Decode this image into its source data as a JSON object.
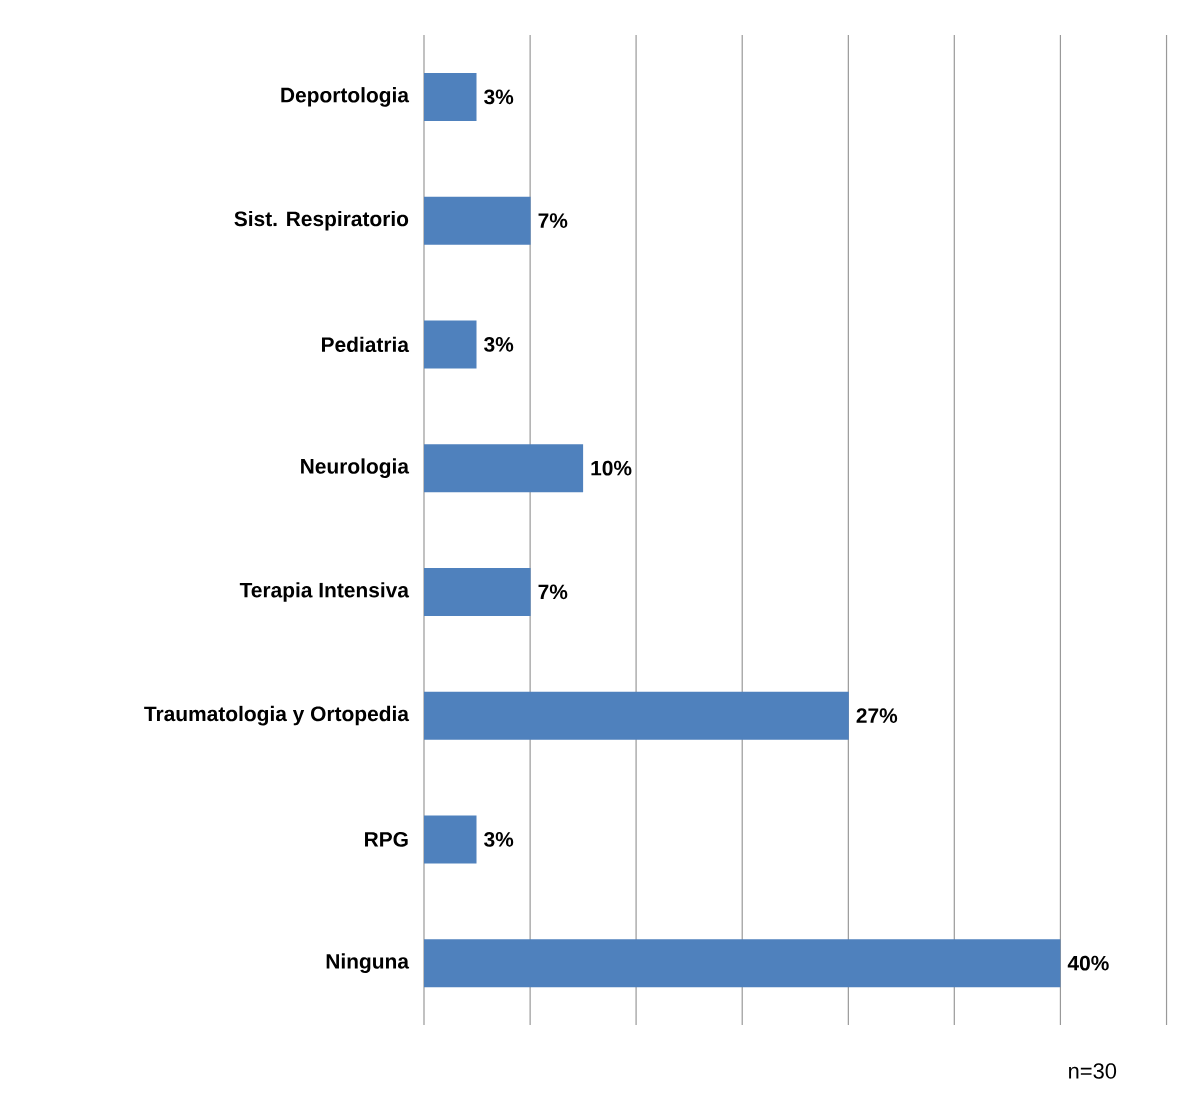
{
  "chart_data": {
    "type": "bar",
    "orientation": "horizontal",
    "categories": [
      "Deportologia",
      "Sist. Respiratorio",
      "Pediatria",
      "Neurologia",
      "Terapia Intensiva",
      "Traumatologia y Ortopedia",
      "RPG",
      "Ninguna"
    ],
    "values": [
      3.3,
      6.7,
      3.3,
      10,
      6.7,
      26.7,
      3.3,
      40
    ],
    "value_labels": [
      "3%",
      "7%",
      "3%",
      "10%",
      "7%",
      "27%",
      "3%",
      "40%"
    ],
    "color": "#4f81bd",
    "xlim": [
      0,
      46.7
    ],
    "xticks": [
      {
        "value": 0,
        "label": null
      },
      {
        "value": 6.67,
        "label": null
      },
      {
        "value": 13.33,
        "label": null
      },
      {
        "value": 20,
        "label": null
      },
      {
        "value": 26.67,
        "label": null
      },
      {
        "value": 33.33,
        "label": null
      },
      {
        "value": 40,
        "label": null
      },
      {
        "value": 46.67,
        "label": null
      }
    ],
    "grid": "x",
    "annotations": [
      "n=30"
    ]
  }
}
